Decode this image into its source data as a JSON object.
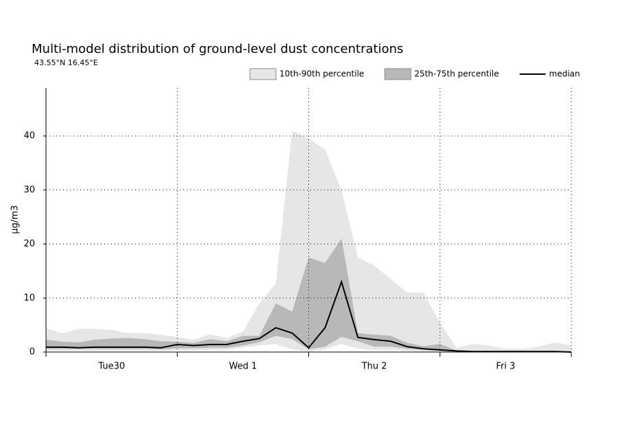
{
  "chart_data": {
    "type": "band",
    "title": "Multi-model distribution of ground-level dust concentrations",
    "subtitle": "43.55°N 16.45°E",
    "y_label": "µg/m3",
    "x": [
      0,
      0.125,
      0.25,
      0.375,
      0.5,
      0.625,
      0.75,
      0.875,
      1,
      1.125,
      1.25,
      1.375,
      1.5,
      1.625,
      1.75,
      1.875,
      2,
      2.125,
      2.25,
      2.375,
      2.5,
      2.625,
      2.75,
      2.875,
      3,
      3.125,
      3.25,
      3.375,
      3.5,
      3.625,
      3.75,
      3.875,
      4
    ],
    "xlim": [
      0,
      4
    ],
    "xticks": [
      {
        "value": 0.5,
        "label": "Tue30"
      },
      {
        "value": 1.5,
        "label": "Wed 1"
      },
      {
        "value": 2.5,
        "label": "Thu 2"
      },
      {
        "value": 3.5,
        "label": "Fri 3"
      }
    ],
    "xgrid": [
      0,
      1,
      2,
      3,
      4
    ],
    "ylim": [
      0,
      48.9
    ],
    "yticks": [
      0,
      10,
      20,
      30,
      40
    ],
    "grid": true,
    "series": [
      {
        "name": "10th-90th percentile",
        "color": "#e6e6e6",
        "low": [
          0.2,
          0.2,
          0.2,
          0.2,
          0.2,
          0.2,
          0.2,
          0.2,
          0.3,
          0.3,
          0.4,
          0.4,
          0.8,
          1.2,
          1.5,
          0.5,
          0.1,
          0.5,
          1.5,
          0.6,
          0.4,
          0.4,
          0.2,
          0.1,
          0.1,
          0,
          0,
          0,
          0,
          0,
          0,
          0,
          0
        ],
        "high": [
          4.4,
          3.5,
          4.3,
          4.3,
          4.1,
          3.5,
          3.5,
          3.2,
          2.8,
          2.3,
          3.3,
          2.6,
          3.8,
          9,
          12.7,
          41,
          39.5,
          37.5,
          30,
          17.5,
          16,
          13.5,
          11,
          11,
          5.5,
          0.8,
          1.5,
          1.2,
          0.6,
          0.6,
          1,
          1.8,
          1.2
        ]
      },
      {
        "name": "25th-75th percentile",
        "color": "#b8b8b8",
        "low": [
          0.6,
          0.6,
          0.6,
          0.6,
          0.6,
          0.6,
          0.6,
          0.5,
          0.7,
          0.7,
          0.8,
          0.8,
          1.2,
          1.8,
          3,
          2.4,
          0.5,
          1,
          2.8,
          2,
          1,
          1,
          0.6,
          0.4,
          0.2,
          0.1,
          0.1,
          0,
          0,
          0,
          0,
          0,
          0
        ],
        "high": [
          2.3,
          1.9,
          1.8,
          2.3,
          2.5,
          2.6,
          2.4,
          2,
          1.9,
          1.7,
          2.4,
          2,
          3,
          3,
          9,
          7.5,
          17.5,
          16.5,
          21,
          3.5,
          3.2,
          3,
          1.7,
          1.1,
          1.5,
          0.3,
          0.2,
          0.1,
          0.1,
          0.1,
          0.1,
          0.1,
          0.1
        ]
      },
      {
        "name": "median",
        "color": "#000000",
        "values": [
          0.9,
          0.9,
          0.8,
          0.9,
          0.9,
          0.9,
          0.9,
          0.8,
          1.4,
          1.2,
          1.4,
          1.4,
          2,
          2.5,
          4.5,
          3.5,
          0.8,
          4.5,
          13,
          2.7,
          2.3,
          2,
          1,
          0.6,
          0.4,
          0.2,
          0.1,
          0.1,
          0.1,
          0.1,
          0.1,
          0.1,
          0
        ]
      }
    ]
  }
}
